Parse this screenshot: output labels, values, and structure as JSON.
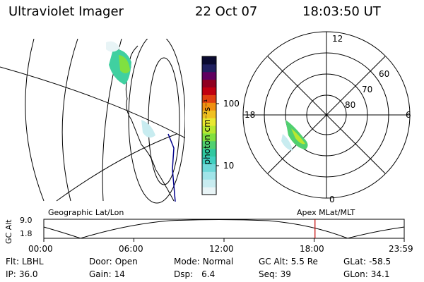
{
  "header": {
    "title": "Ultraviolet Imager",
    "date": "22 Oct 07",
    "time": "18:03:50 UT"
  },
  "colorbar": {
    "label": "photon cm⁻²s⁻¹",
    "tick_100": "100",
    "tick_10": "10",
    "colors": [
      "#e8f4f6",
      "#c8ecf0",
      "#a0e4e8",
      "#6fd8d8",
      "#40d0c0",
      "#30c8a0",
      "#50d070",
      "#80e040",
      "#b8e830",
      "#e8e830",
      "#f0c020",
      "#f09010",
      "#e04010",
      "#c00010",
      "#900020",
      "#600060",
      "#202060",
      "#0a0a30"
    ]
  },
  "polar_plot": {
    "mlt_labels": {
      "top": "12",
      "left": "18",
      "right": "6",
      "bottom": "0"
    },
    "lat_labels": [
      "60",
      "70",
      "80"
    ]
  },
  "timeline": {
    "axis_title": "GC Alt",
    "left_caption": "Geographic Lat/Lon",
    "right_caption": "Apex MLat/MLT",
    "y_ticks": [
      "9.0",
      "1.8"
    ],
    "x_ticks": [
      "00:00",
      "06:00",
      "12:00",
      "18:00",
      "23:59"
    ],
    "current_time_hours": 18.06
  },
  "status": {
    "flt": {
      "label": "Flt:",
      "value": "LBHL"
    },
    "ip": {
      "label": "IP:",
      "value": "36.0"
    },
    "door": {
      "label": "Door:",
      "value": "Open"
    },
    "gain": {
      "label": "Gain:",
      "value": "14"
    },
    "mode": {
      "label": "Mode:",
      "value": "Normal"
    },
    "dsp": {
      "label": "Dsp:",
      "value": "6.4"
    },
    "gcalt": {
      "label": "GC Alt:",
      "value": "5.5 Re"
    },
    "seq": {
      "label": "Seq:",
      "value": "39"
    },
    "glat": {
      "label": "GLat:",
      "value": "-58.5"
    },
    "glon": {
      "label": "GLon:",
      "value": "34.1"
    }
  }
}
